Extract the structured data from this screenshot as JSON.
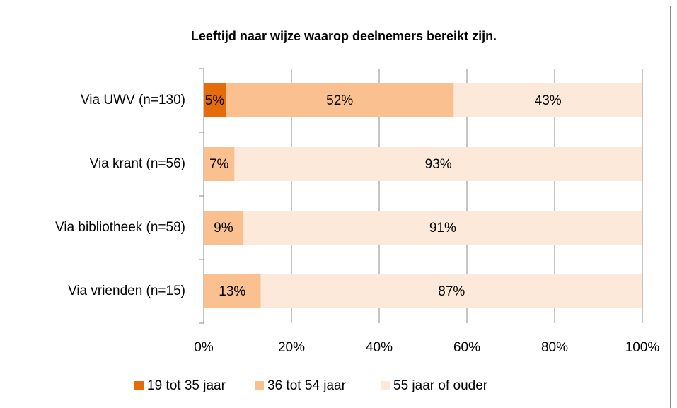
{
  "chart_data": {
    "type": "stacked-barh",
    "title": "Leeftijd naar wijze waarop deelnemers bereikt zijn.",
    "categories": [
      "Via UWV (n=130)",
      "Via krant (n=56)",
      "Via bibliotheek (n=58)",
      "Via vrienden (n=15)"
    ],
    "series": [
      {
        "name": "19 tot 35 jaar",
        "color": "#e46c0a",
        "values": [
          5,
          0,
          0,
          0
        ],
        "value_labels": [
          "5%",
          null,
          null,
          null
        ]
      },
      {
        "name": "36 tot 54 jaar",
        "color": "#fac090",
        "values": [
          52,
          7,
          9,
          13
        ],
        "value_labels": [
          "52%",
          "7%",
          "9%",
          "13%"
        ]
      },
      {
        "name": "55 jaar of ouder",
        "color": "#fde9d9",
        "values": [
          43,
          93,
          91,
          87
        ],
        "value_labels": [
          "43%",
          "93%",
          "91%",
          "87%"
        ]
      }
    ],
    "xlim": [
      0,
      100
    ],
    "xticks": [
      {
        "value": 0,
        "label": "0%"
      },
      {
        "value": 20,
        "label": "20%"
      },
      {
        "value": 40,
        "label": "40%"
      },
      {
        "value": 60,
        "label": "60%"
      },
      {
        "value": 80,
        "label": "80%"
      },
      {
        "value": 100,
        "label": "100%"
      }
    ],
    "grid": true,
    "legend": "bottom"
  }
}
